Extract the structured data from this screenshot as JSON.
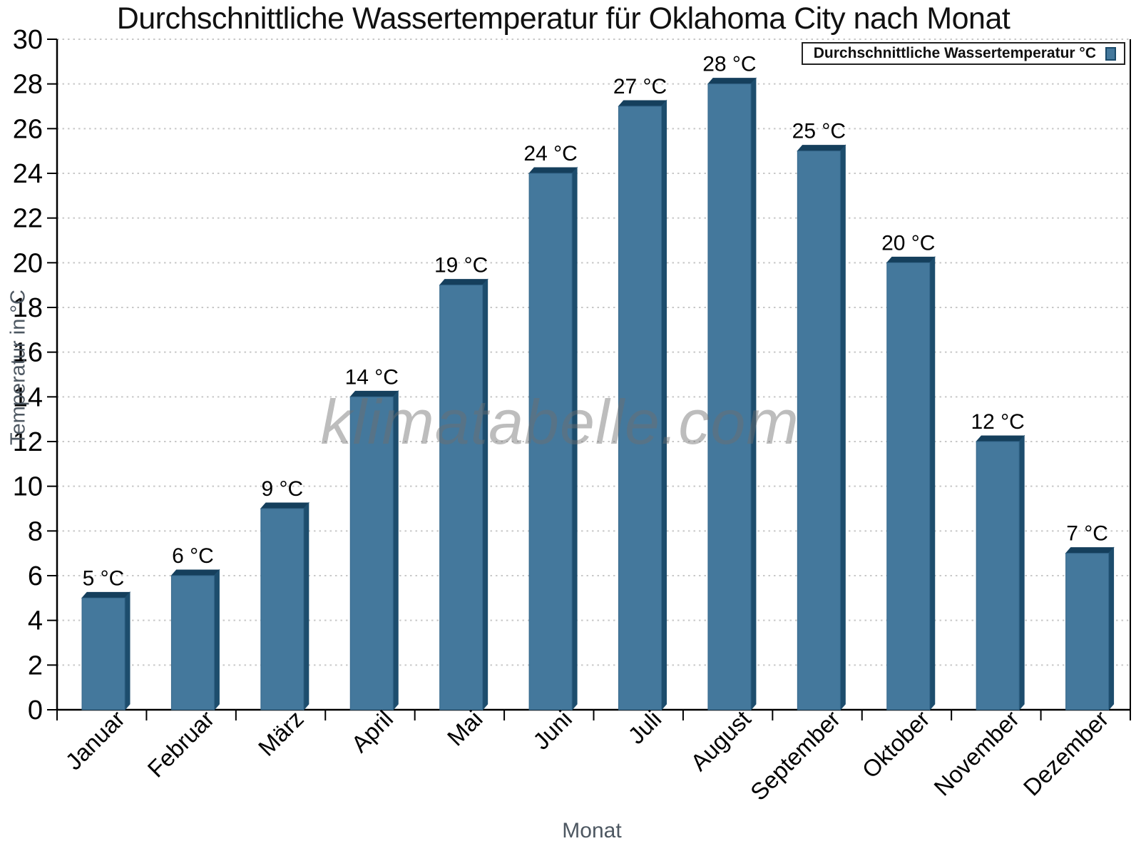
{
  "page": {
    "background": "#ffffff"
  },
  "chart_data": {
    "type": "bar",
    "title": "Durchschnittliche Wassertemperatur für Oklahoma City nach Monat",
    "xlabel": "Monat",
    "ylabel": "Temperatur in °C",
    "categories": [
      "Januar",
      "Februar",
      "März",
      "April",
      "Mai",
      "Juni",
      "Juli",
      "August",
      "September",
      "Oktober",
      "November",
      "Dezember"
    ],
    "values": [
      5,
      6,
      9,
      14,
      19,
      24,
      27,
      28,
      25,
      20,
      12,
      7
    ],
    "data_label_suffix": " °C",
    "ylim": [
      0,
      30
    ],
    "ytick_step": 2,
    "grid": "horizontal-dotted",
    "legend": {
      "position": "top-right",
      "label": "Durchschnittliche Wassertemperatur °C",
      "marker_color": "#44789C"
    },
    "watermark": "klimatabelle.com",
    "colors": {
      "bar_face": "#44789C",
      "bar_side": "#1D4D6D",
      "bar_top": "#153F5C",
      "axis_line": "#000000",
      "gridline": "#C8C8C8",
      "tick_label": "#000000",
      "data_label": "#000000",
      "axis_title": "#4D5761",
      "watermark": "#6E6E6E"
    }
  }
}
